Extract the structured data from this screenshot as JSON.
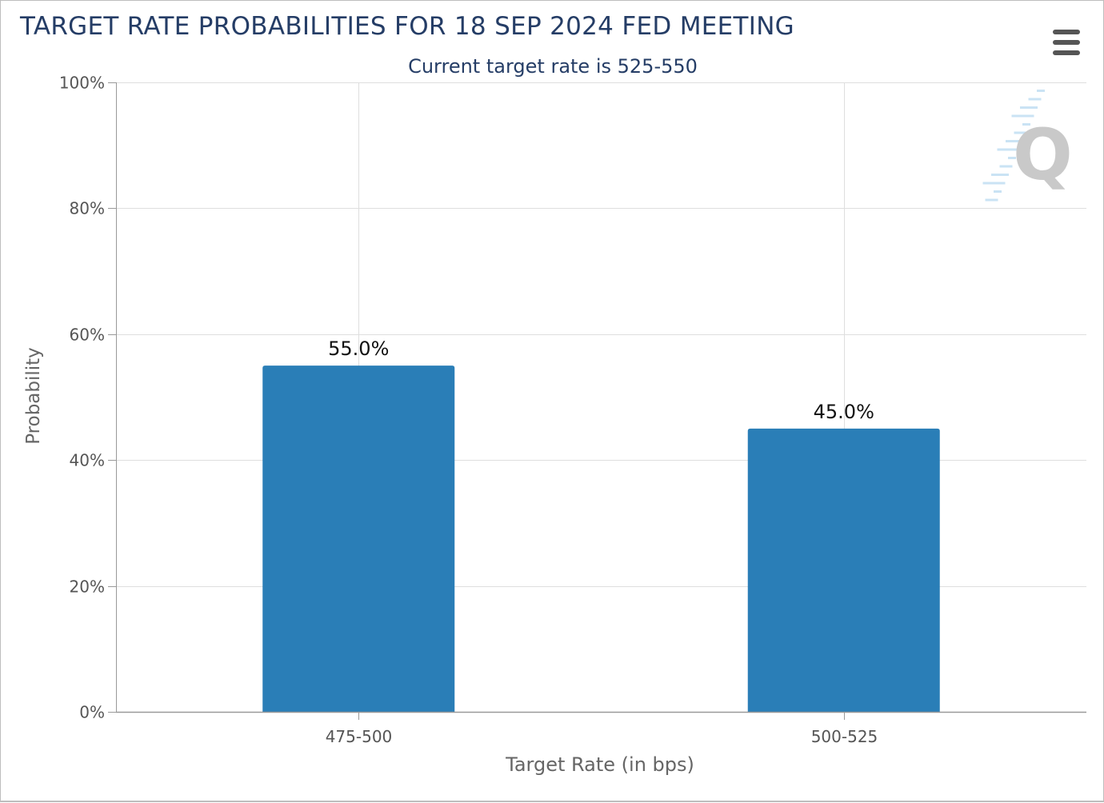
{
  "header": {
    "title": "TARGET RATE PROBABILITIES FOR 18 SEP 2024 FED MEETING",
    "subtitle": "Current target rate is 525-550",
    "menu_icon": "hamburger-menu-icon"
  },
  "colors": {
    "bar": "#2a7eb7",
    "title": "#253d66",
    "grid": "#dedede",
    "axis": "#999999",
    "watermark": "#c9c9c9",
    "watermark_stripes": "#b8d9f0"
  },
  "chart_data": {
    "type": "bar",
    "title": "TARGET RATE PROBABILITIES FOR 18 SEP 2024 FED MEETING",
    "subtitle": "Current target rate is 525-550",
    "xlabel": "Target Rate (in bps)",
    "ylabel": "Probability",
    "categories": [
      "475-500",
      "500-525"
    ],
    "values": [
      55.0,
      45.0
    ],
    "data_labels": [
      "55.0%",
      "45.0%"
    ],
    "ylim": [
      0,
      100
    ],
    "yticks": [
      0,
      20,
      40,
      60,
      80,
      100
    ],
    "ytick_labels": [
      "0%",
      "20%",
      "40%",
      "60%",
      "80%",
      "100%"
    ],
    "grid": true,
    "legend": "none"
  }
}
